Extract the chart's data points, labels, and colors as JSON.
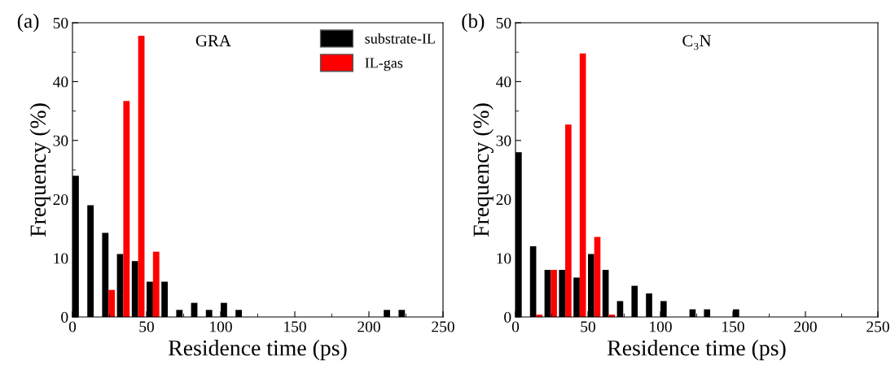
{
  "chart_data": [
    {
      "type": "histogram",
      "annotations": [
        "(a)",
        "GRA"
      ],
      "xlabel": "Residence time (ps)",
      "ylabel": "Frequency (%)",
      "bins": [
        0,
        10,
        20,
        30,
        40,
        50,
        60,
        70,
        80,
        90,
        100,
        110,
        120,
        130,
        140,
        150,
        160,
        170,
        180,
        190,
        200,
        210,
        220,
        230
      ],
      "series": [
        {
          "name": "substrate-IL",
          "color": "#000000",
          "values": [
            24,
            19,
            14.3,
            10.7,
            9.5,
            6,
            6,
            1.2,
            2.4,
            1.2,
            2.4,
            1.2,
            0,
            0,
            0,
            0,
            0,
            0,
            0,
            0,
            0,
            1.2,
            1.2
          ]
        },
        {
          "name": "IL-gas",
          "color": "#ff0000",
          "values": [
            0,
            0,
            4.6,
            36.7,
            47.8,
            11.1,
            0,
            0,
            0,
            0,
            0,
            0,
            0,
            0,
            0,
            0,
            0,
            0,
            0,
            0,
            0,
            0,
            0
          ]
        }
      ],
      "xlim": [
        0,
        250
      ],
      "xticks": [
        0,
        50,
        100,
        150,
        200,
        250
      ],
      "ylim": [
        0,
        50
      ],
      "yticks": [
        0,
        10,
        20,
        30,
        40,
        50
      ],
      "legend": "top right",
      "grid": false
    },
    {
      "type": "histogram",
      "annotations": [
        "(b)",
        "C₃N"
      ],
      "xlabel": "Residence time (ps)",
      "ylabel": "Frequency (%)",
      "bins": [
        0,
        10,
        20,
        30,
        40,
        50,
        60,
        70,
        80,
        90,
        100,
        110,
        120,
        130,
        140,
        150,
        160
      ],
      "series": [
        {
          "color": "#000000",
          "values": [
            28,
            12,
            8,
            8,
            6.7,
            10.7,
            8,
            2.7,
            5.3,
            4,
            2.7,
            0,
            1.3,
            1.3,
            0,
            1.3
          ]
        },
        {
          "color": "#ff0000",
          "values": [
            0,
            0.4,
            8,
            32.7,
            44.8,
            13.6,
            0.4,
            0,
            0,
            0,
            0,
            0,
            0,
            0,
            0,
            0
          ]
        }
      ],
      "xlim": [
        0,
        250
      ],
      "xticks": [
        0,
        50,
        100,
        150,
        200,
        250
      ],
      "ylim": [
        0,
        50
      ],
      "yticks": [
        0,
        10,
        20,
        30,
        40,
        50
      ],
      "legend": false,
      "grid": false
    }
  ]
}
